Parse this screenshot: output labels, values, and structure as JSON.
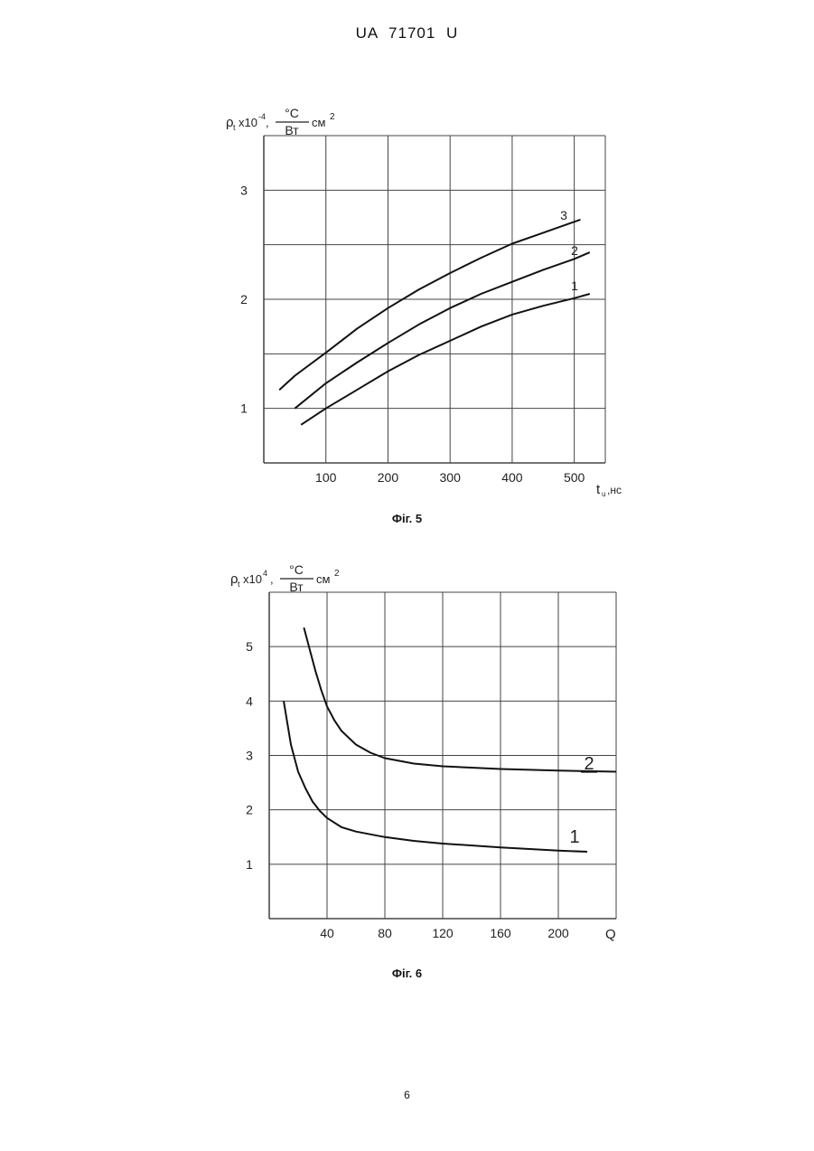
{
  "header": {
    "patent": "UA   71701   U"
  },
  "page_number": "6",
  "chart_data": [
    {
      "type": "line",
      "caption": "Фіг. 5",
      "ylabel": {
        "sym": "ρ",
        "sub": "t",
        "mult": "x10",
        "exp": "-4",
        "comma": ",",
        "unit_num": "°C",
        "unit_den": "Вт",
        "unit_tail": "см",
        "unit_exp": "2"
      },
      "xlabel": {
        "sym": "t",
        "sub": "u",
        "unit": ",нс"
      },
      "xlim": [
        0,
        550
      ],
      "ylim": [
        0.5,
        3.5
      ],
      "xticks": [
        100,
        200,
        300,
        400,
        500
      ],
      "yticks": [
        1,
        2,
        3
      ],
      "xgrid": [
        100,
        200,
        300,
        400,
        500,
        550
      ],
      "ygrid": [
        1,
        1.5,
        2,
        2.5,
        3,
        3.5
      ],
      "series": [
        {
          "name": "1",
          "x": [
            60,
            100,
            150,
            200,
            250,
            300,
            350,
            400,
            450,
            500,
            525
          ],
          "y": [
            0.85,
            1.0,
            1.17,
            1.34,
            1.49,
            1.62,
            1.75,
            1.86,
            1.94,
            2.01,
            2.05
          ]
        },
        {
          "name": "2",
          "x": [
            50,
            100,
            150,
            200,
            250,
            300,
            350,
            400,
            450,
            500,
            525
          ],
          "y": [
            1.0,
            1.23,
            1.42,
            1.6,
            1.77,
            1.92,
            2.05,
            2.16,
            2.27,
            2.37,
            2.43
          ]
        },
        {
          "name": "3",
          "x": [
            25,
            50,
            100,
            150,
            200,
            250,
            300,
            350,
            400,
            450,
            500,
            510
          ],
          "y": [
            1.17,
            1.3,
            1.51,
            1.73,
            1.92,
            2.09,
            2.24,
            2.38,
            2.51,
            2.61,
            2.71,
            2.73
          ]
        }
      ]
    },
    {
      "type": "line",
      "caption": "Фіг. 6",
      "ylabel": {
        "sym": "ρ",
        "sub": "t",
        "mult": "x10",
        "exp": "4",
        "comma": ",",
        "unit_num": "°C",
        "unit_den": "Вт",
        "unit_tail": "см",
        "unit_exp": "2"
      },
      "xlabel": {
        "sym": "Q"
      },
      "xlim": [
        0,
        240
      ],
      "ylim": [
        0,
        6
      ],
      "xticks": [
        40,
        80,
        120,
        160,
        200
      ],
      "yticks": [
        1,
        2,
        3,
        4,
        5
      ],
      "xgrid": [
        40,
        80,
        120,
        160,
        200,
        240
      ],
      "ygrid": [
        1,
        2,
        3,
        4,
        5,
        6
      ],
      "series": [
        {
          "name": "1",
          "x": [
            10,
            15,
            20,
            25,
            30,
            35,
            40,
            50,
            60,
            80,
            100,
            120,
            160,
            200,
            220
          ],
          "y": [
            4.0,
            3.2,
            2.7,
            2.4,
            2.15,
            1.98,
            1.85,
            1.68,
            1.6,
            1.5,
            1.43,
            1.38,
            1.31,
            1.25,
            1.23
          ]
        },
        {
          "name": "2",
          "x": [
            24,
            28,
            32,
            36,
            40,
            45,
            50,
            60,
            70,
            80,
            100,
            120,
            160,
            200,
            240
          ],
          "y": [
            5.35,
            4.95,
            4.55,
            4.2,
            3.9,
            3.65,
            3.45,
            3.2,
            3.05,
            2.95,
            2.85,
            2.8,
            2.75,
            2.72,
            2.7
          ]
        }
      ]
    }
  ]
}
